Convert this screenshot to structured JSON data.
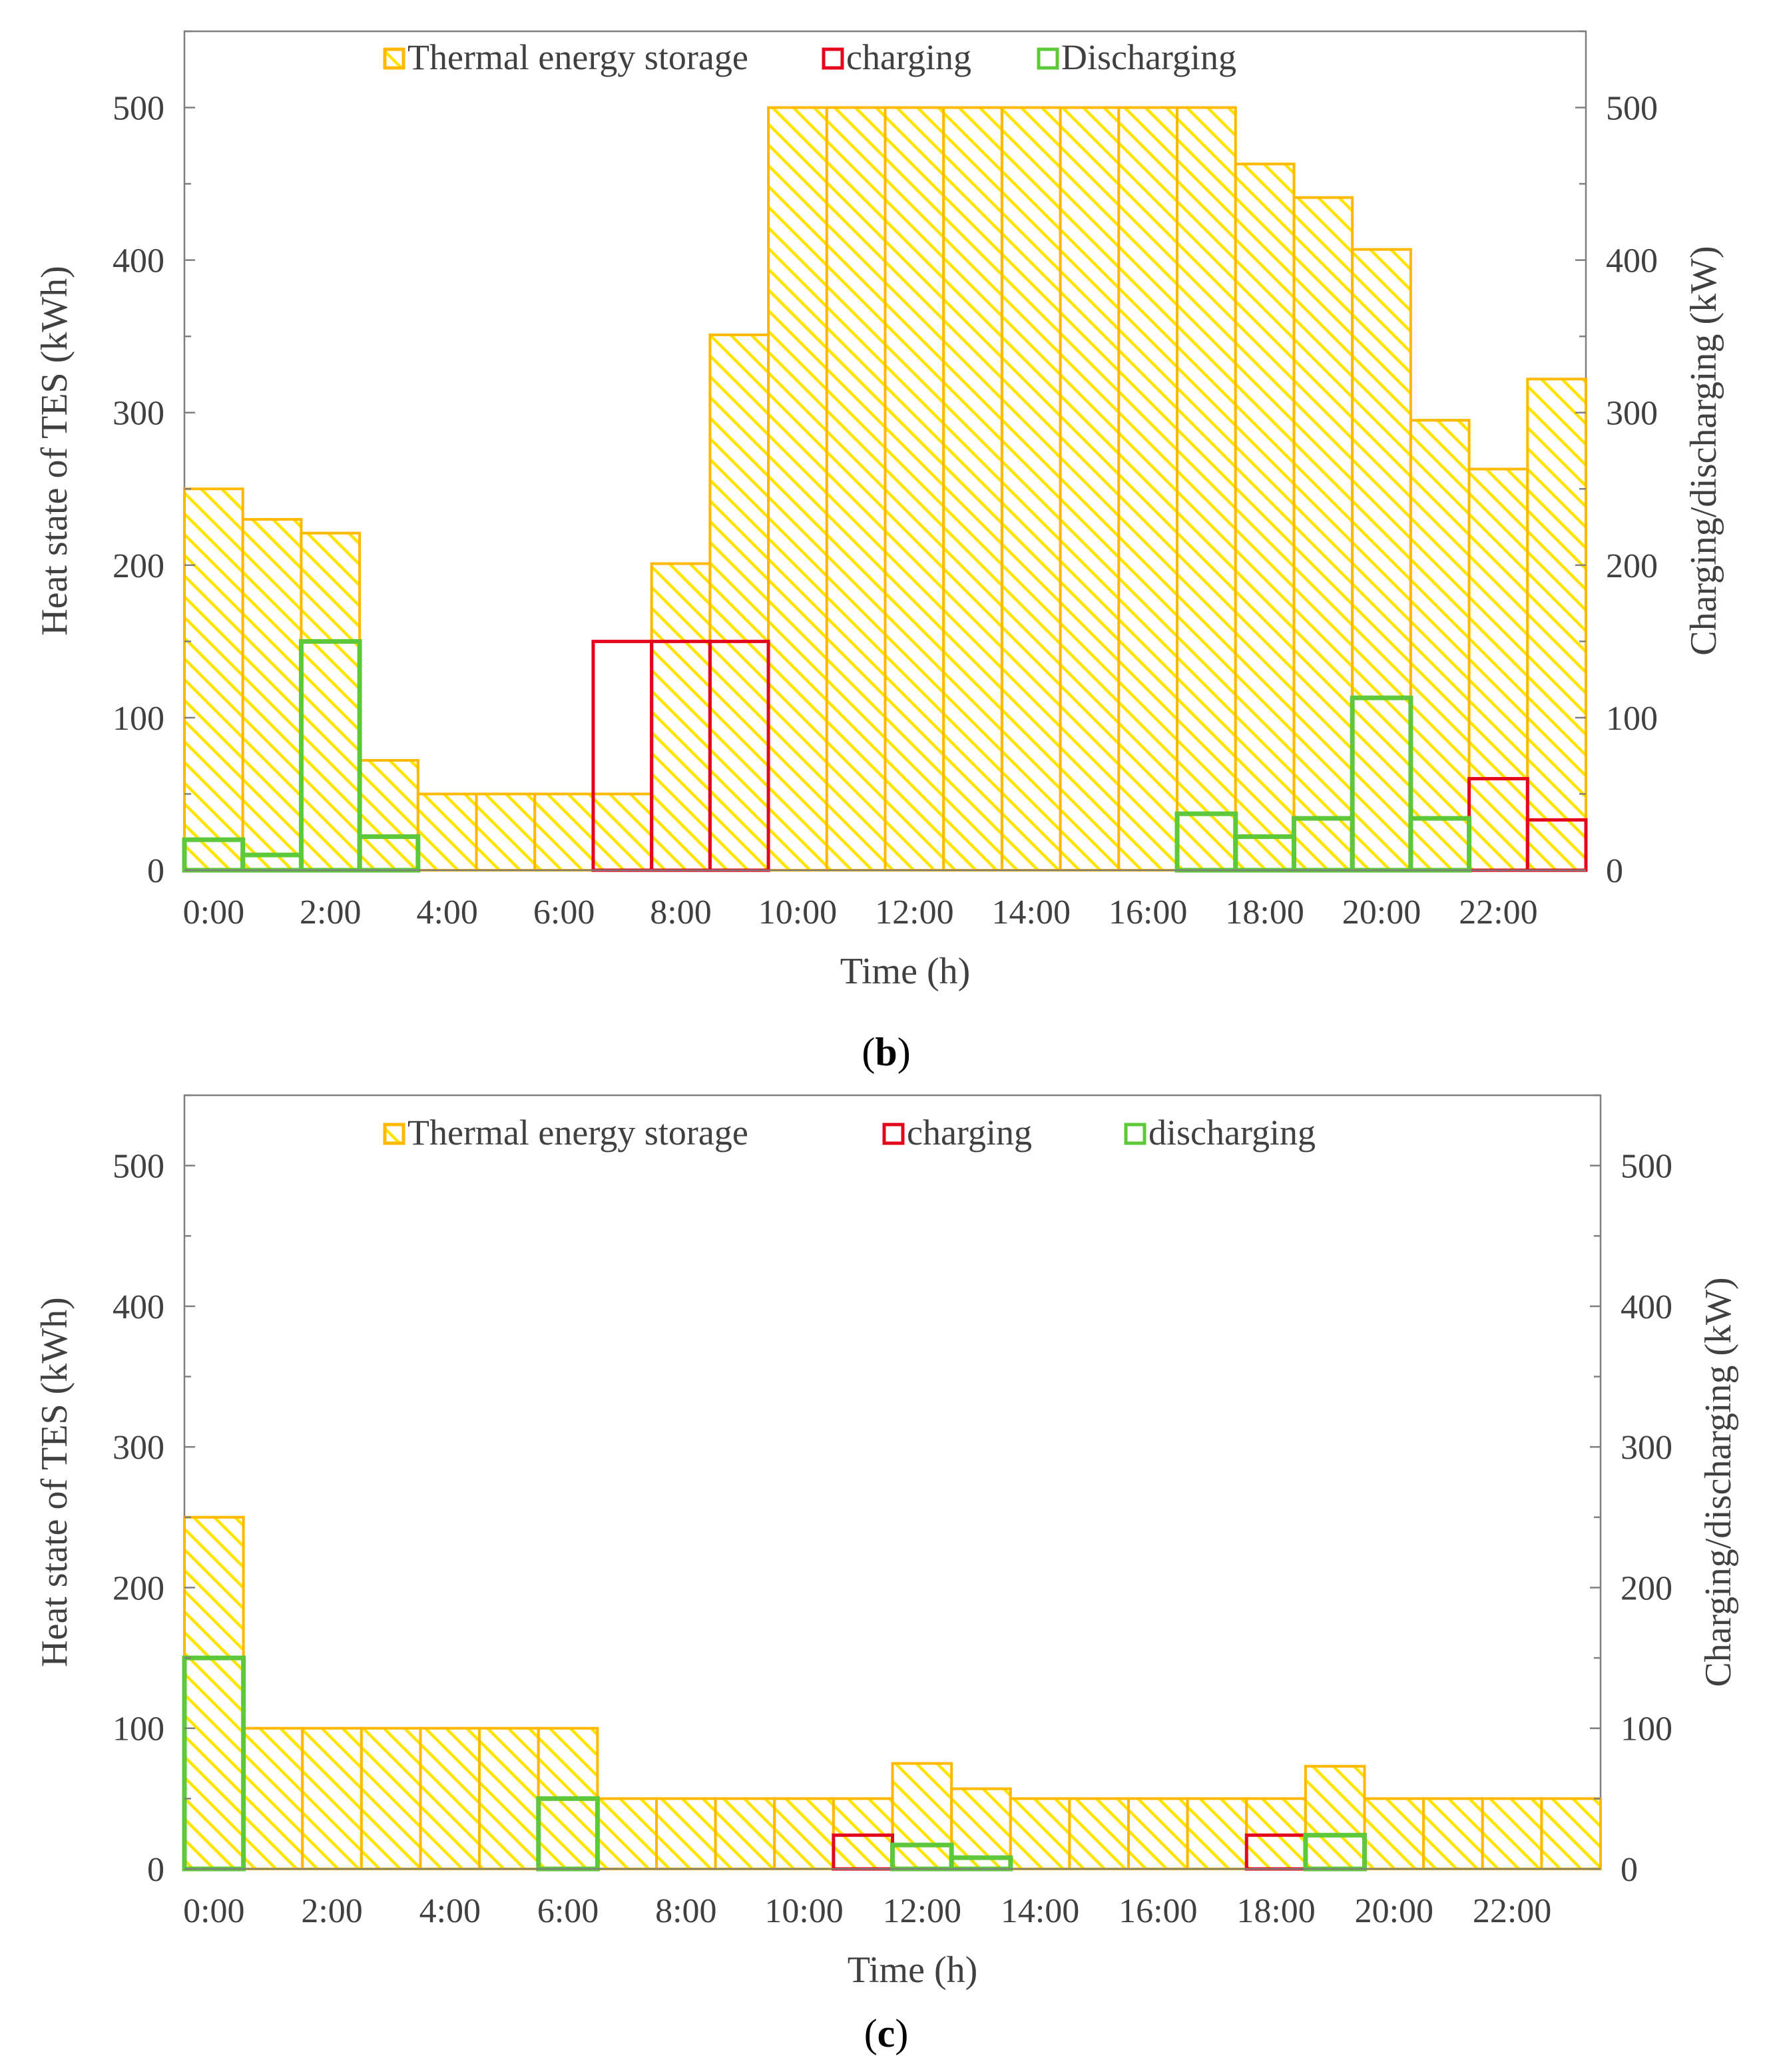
{
  "colors": {
    "tes_fill_hatch": "#ffe400",
    "tes_edge": "#ffb800",
    "charging": "#e3061c",
    "discharging": "#5dc83a",
    "axis": "#7f7f7f",
    "text": "#404040"
  },
  "chart_data": [
    {
      "id": "b",
      "type": "bar",
      "caption": {
        "open": "(",
        "letter": "b",
        "close": ")"
      },
      "xlabel": "Time (h)",
      "ylabel_left": "Heat state of TES (kWh)",
      "ylabel_right": "Charging/discharging (kW)",
      "ylim": [
        0,
        550
      ],
      "yticks": [
        0,
        100,
        200,
        300,
        400,
        500
      ],
      "categories": [
        "0:00",
        "1:00",
        "2:00",
        "3:00",
        "4:00",
        "5:00",
        "6:00",
        "7:00",
        "8:00",
        "9:00",
        "10:00",
        "11:00",
        "12:00",
        "13:00",
        "14:00",
        "15:00",
        "16:00",
        "17:00",
        "18:00",
        "19:00",
        "20:00",
        "21:00",
        "22:00",
        "23:00"
      ],
      "xtick_labels": [
        "0:00",
        "2:00",
        "4:00",
        "6:00",
        "8:00",
        "10:00",
        "12:00",
        "14:00",
        "16:00",
        "18:00",
        "20:00",
        "22:00"
      ],
      "legend": [
        "Thermal energy storage",
        "charging",
        "Discharging"
      ],
      "series": [
        {
          "name": "Thermal energy storage",
          "values": [
            250,
            230,
            221,
            72,
            50,
            50,
            50,
            50,
            201,
            351,
            500,
            500,
            500,
            500,
            500,
            500,
            500,
            500,
            463,
            441,
            407,
            295,
            263,
            322
          ]
        },
        {
          "name": "charging",
          "values": [
            0,
            0,
            0,
            0,
            0,
            0,
            0,
            150,
            150,
            150,
            0,
            0,
            0,
            0,
            0,
            0,
            0,
            0,
            0,
            0,
            0,
            0,
            60,
            33
          ]
        },
        {
          "name": "Discharging",
          "values": [
            20,
            10,
            150,
            22,
            0,
            0,
            0,
            0,
            0,
            0,
            0,
            0,
            0,
            0,
            0,
            0,
            0,
            37,
            22,
            34,
            113,
            34,
            0,
            0
          ]
        }
      ]
    },
    {
      "id": "c",
      "type": "bar",
      "caption": {
        "open": "(",
        "letter": "c",
        "close": ")"
      },
      "xlabel": "Time (h)",
      "ylabel_left": "Heat state of TES (kWh)",
      "ylabel_right": "Charging/discharging (kW)",
      "ylim": [
        0,
        550
      ],
      "yticks": [
        0,
        100,
        200,
        300,
        400,
        500
      ],
      "categories": [
        "0:00",
        "1:00",
        "2:00",
        "3:00",
        "4:00",
        "5:00",
        "6:00",
        "7:00",
        "8:00",
        "9:00",
        "10:00",
        "11:00",
        "12:00",
        "13:00",
        "14:00",
        "15:00",
        "16:00",
        "17:00",
        "18:00",
        "19:00",
        "20:00",
        "21:00",
        "22:00",
        "23:00"
      ],
      "xtick_labels": [
        "0:00",
        "2:00",
        "4:00",
        "6:00",
        "8:00",
        "10:00",
        "12:00",
        "14:00",
        "16:00",
        "18:00",
        "20:00",
        "22:00"
      ],
      "legend": [
        "Thermal energy storage",
        "charging",
        "discharging"
      ],
      "series": [
        {
          "name": "Thermal energy storage",
          "values": [
            250,
            100,
            100,
            100,
            100,
            100,
            100,
            50,
            50,
            50,
            50,
            50,
            75,
            57,
            50,
            50,
            50,
            50,
            50,
            73,
            50,
            50,
            50,
            50
          ]
        },
        {
          "name": "charging",
          "values": [
            0,
            0,
            0,
            0,
            0,
            0,
            0,
            0,
            0,
            0,
            0,
            24,
            0,
            0,
            0,
            0,
            0,
            0,
            24,
            0,
            0,
            0,
            0,
            0
          ]
        },
        {
          "name": "discharging",
          "values": [
            150,
            0,
            0,
            0,
            0,
            0,
            50,
            0,
            0,
            0,
            0,
            0,
            17,
            8,
            0,
            0,
            0,
            0,
            0,
            24,
            0,
            0,
            0,
            0
          ]
        }
      ]
    }
  ]
}
